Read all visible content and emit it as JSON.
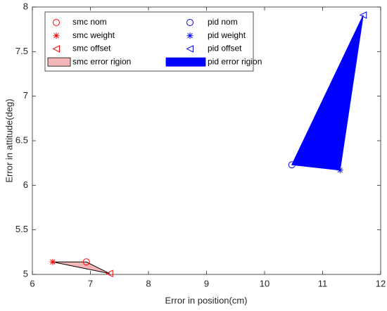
{
  "chart_data": {
    "type": "scatter",
    "x_label": "Error in position(cm)",
    "y_label": "Error in attitude(deg)",
    "xlim": [
      6,
      12
    ],
    "xticks": [
      6,
      7,
      8,
      9,
      10,
      11,
      12
    ],
    "ylim": [
      5,
      8
    ],
    "yticks": [
      5,
      5.5,
      6,
      6.5,
      7,
      7.5,
      8
    ],
    "legend_position": "upper-left",
    "series": [
      {
        "name": "smc nom",
        "color": "#ff0000",
        "marker": "circle",
        "x": [
          6.93
        ],
        "y": [
          5.14
        ]
      },
      {
        "name": "pid nom",
        "color": "#0000ff",
        "marker": "circle",
        "x": [
          10.47
        ],
        "y": [
          6.23
        ]
      },
      {
        "name": "smc weight",
        "color": "#ff0000",
        "marker": "asterisk",
        "x": [
          6.35
        ],
        "y": [
          5.14
        ]
      },
      {
        "name": "pid weight",
        "color": "#0000ff",
        "marker": "asterisk",
        "x": [
          11.3
        ],
        "y": [
          6.17
        ]
      },
      {
        "name": "smc offset",
        "color": "#ff0000",
        "marker": "triangle-left",
        "x": [
          7.33
        ],
        "y": [
          5.01
        ]
      },
      {
        "name": "pid offset",
        "color": "#0000ff",
        "marker": "triangle-left",
        "x": [
          11.7
        ],
        "y": [
          7.91
        ]
      }
    ],
    "regions": [
      {
        "name": "smc error rigion",
        "color": "#f4b6b6",
        "edge": "#000000",
        "x": [
          6.35,
          6.93,
          7.33
        ],
        "y": [
          5.14,
          5.14,
          5.01
        ]
      },
      {
        "name": "pid error rigion",
        "color": "#0000ff",
        "edge": "#0000ff",
        "x": [
          10.47,
          11.7,
          11.3
        ],
        "y": [
          6.23,
          7.91,
          6.17
        ]
      }
    ]
  }
}
